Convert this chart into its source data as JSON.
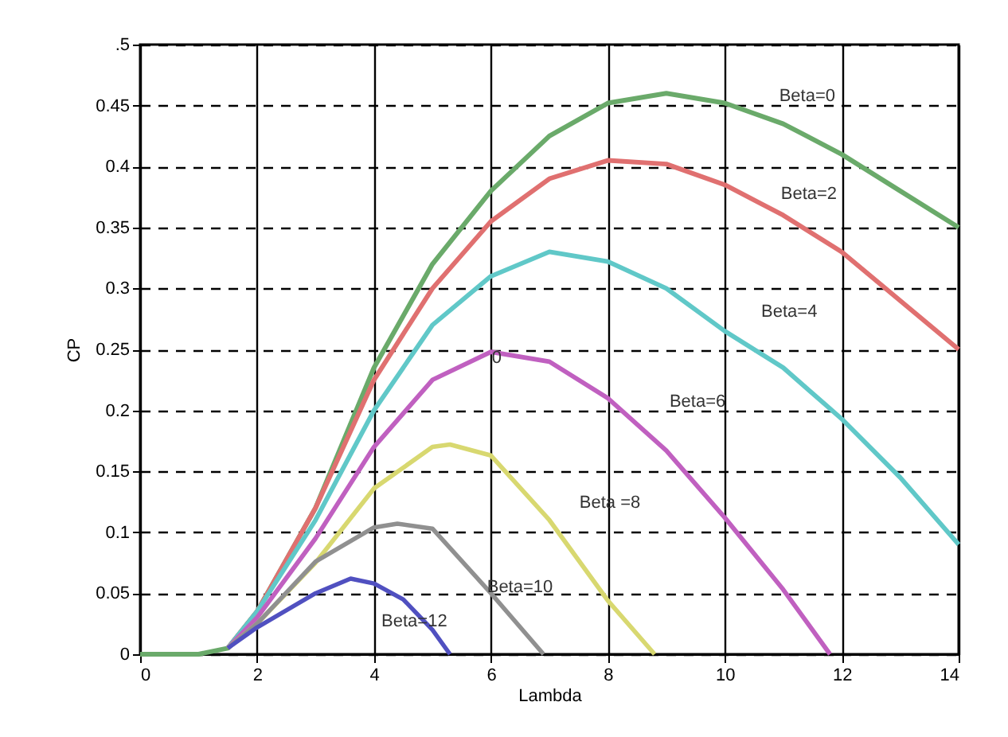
{
  "chart_data": {
    "type": "line",
    "xlabel": "Lambda",
    "ylabel": "CP",
    "xlim": [
      0,
      14
    ],
    "xticks": [
      0,
      2,
      4,
      6,
      8,
      10,
      12,
      14
    ],
    "ylim": [
      0,
      0.5
    ],
    "yticks": [
      0,
      0.05,
      0.1,
      0.15,
      0.2,
      0.25,
      0.3,
      0.35,
      0.4,
      0.45,
      {
        "value": 0.5,
        "label": ".5"
      }
    ],
    "grid": true,
    "line_style": "solid",
    "marker": "none",
    "series": [
      {
        "name": "Beta=0",
        "color": "#6aaa6a",
        "x": [
          0,
          1,
          1.5,
          2,
          3,
          4,
          5,
          6,
          7,
          8,
          9,
          10,
          11,
          12,
          13,
          14
        ],
        "values": [
          0,
          0,
          0.005,
          0.035,
          0.12,
          0.235,
          0.32,
          0.38,
          0.425,
          0.452,
          0.46,
          0.452,
          0.435,
          0.41,
          0.38,
          0.35
        ]
      },
      {
        "name": "Beta=2",
        "color": "#e07070",
        "x": [
          1.5,
          2,
          3,
          4,
          5,
          6,
          7,
          8,
          9,
          10,
          11,
          12,
          13,
          14
        ],
        "values": [
          0.005,
          0.035,
          0.12,
          0.225,
          0.3,
          0.355,
          0.39,
          0.405,
          0.402,
          0.385,
          0.36,
          0.33,
          0.29,
          0.25
        ]
      },
      {
        "name": "Beta=4",
        "color": "#60c8c8",
        "x": [
          1.5,
          2,
          3,
          4,
          5,
          6,
          7,
          8,
          9,
          10,
          11,
          12,
          13,
          14
        ],
        "values": [
          0.005,
          0.035,
          0.11,
          0.2,
          0.27,
          0.31,
          0.33,
          0.322,
          0.3,
          0.265,
          0.235,
          0.193,
          0.145,
          0.09
        ]
      },
      {
        "name": "Beta=6",
        "color": "#c060c0",
        "x": [
          1.5,
          2,
          3,
          4,
          5,
          6,
          7,
          8,
          9,
          10,
          11,
          11.8
        ],
        "values": [
          0.005,
          0.03,
          0.095,
          0.17,
          0.225,
          0.248,
          0.24,
          0.21,
          0.167,
          0.112,
          0.053,
          0
        ]
      },
      {
        "name": "Beta =8",
        "color": "#d8d870",
        "x": [
          1.5,
          2,
          3,
          4,
          5,
          5.3,
          6,
          7,
          8,
          8.8
        ],
        "values": [
          0.005,
          0.025,
          0.075,
          0.136,
          0.17,
          0.172,
          0.163,
          0.11,
          0.044,
          0
        ]
      },
      {
        "name": "Beta=10",
        "color": "#909090",
        "x": [
          1.5,
          2,
          3,
          4,
          4.4,
          5,
          6,
          6.9
        ],
        "values": [
          0.005,
          0.025,
          0.076,
          0.104,
          0.107,
          0.103,
          0.05,
          0
        ]
      },
      {
        "name": "Beta=12",
        "color": "#5050c0",
        "x": [
          1.5,
          2,
          3,
          3.6,
          4,
          4.5,
          5,
          5.3
        ],
        "values": [
          0.005,
          0.022,
          0.05,
          0.062,
          0.058,
          0.045,
          0.02,
          0
        ]
      }
    ],
    "annotations": [
      {
        "text": "0",
        "x": 6.1,
        "y": 0.243
      }
    ]
  }
}
